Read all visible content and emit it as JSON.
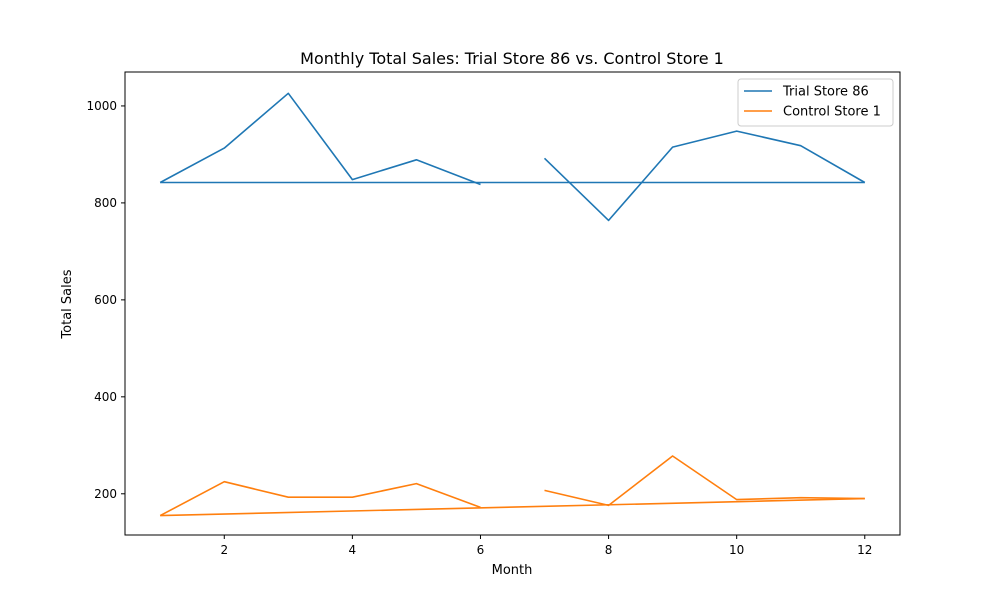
{
  "chart_data": {
    "type": "line",
    "title": "Monthly Total Sales: Trial Store 86 vs. Control Store 1",
    "xlabel": "Month",
    "ylabel": "Total Sales",
    "xlim": [
      0.45,
      12.55
    ],
    "ylim": [
      115,
      1070
    ],
    "xticks": [
      2,
      4,
      6,
      8,
      10,
      12
    ],
    "yticks": [
      200,
      400,
      600,
      800,
      1000
    ],
    "grid": false,
    "legend_position": "top-right",
    "series": [
      {
        "name": "Trial Store 86",
        "color": "#1f77b4",
        "segments": [
          [
            [
              1,
              842
            ],
            [
              2,
              913
            ],
            [
              3,
              1026
            ],
            [
              4,
              848
            ],
            [
              5,
              889
            ],
            [
              6,
              838
            ]
          ],
          [
            [
              7,
              892
            ],
            [
              8,
              764
            ],
            [
              9,
              915
            ],
            [
              10,
              948
            ],
            [
              11,
              918
            ],
            [
              12,
              842
            ]
          ],
          [
            [
              12,
              842
            ],
            [
              1,
              842
            ]
          ]
        ]
      },
      {
        "name": "Control Store 1",
        "color": "#ff7f0e",
        "segments": [
          [
            [
              1,
              155
            ],
            [
              2,
              225
            ],
            [
              3,
              193
            ],
            [
              4,
              193
            ],
            [
              5,
              221
            ],
            [
              6,
              172
            ]
          ],
          [
            [
              7,
              207
            ],
            [
              8,
              176
            ],
            [
              9,
              278
            ],
            [
              10,
              188
            ],
            [
              11,
              192
            ],
            [
              12,
              190
            ]
          ],
          [
            [
              12,
              190
            ],
            [
              1,
              155
            ]
          ]
        ]
      }
    ]
  }
}
